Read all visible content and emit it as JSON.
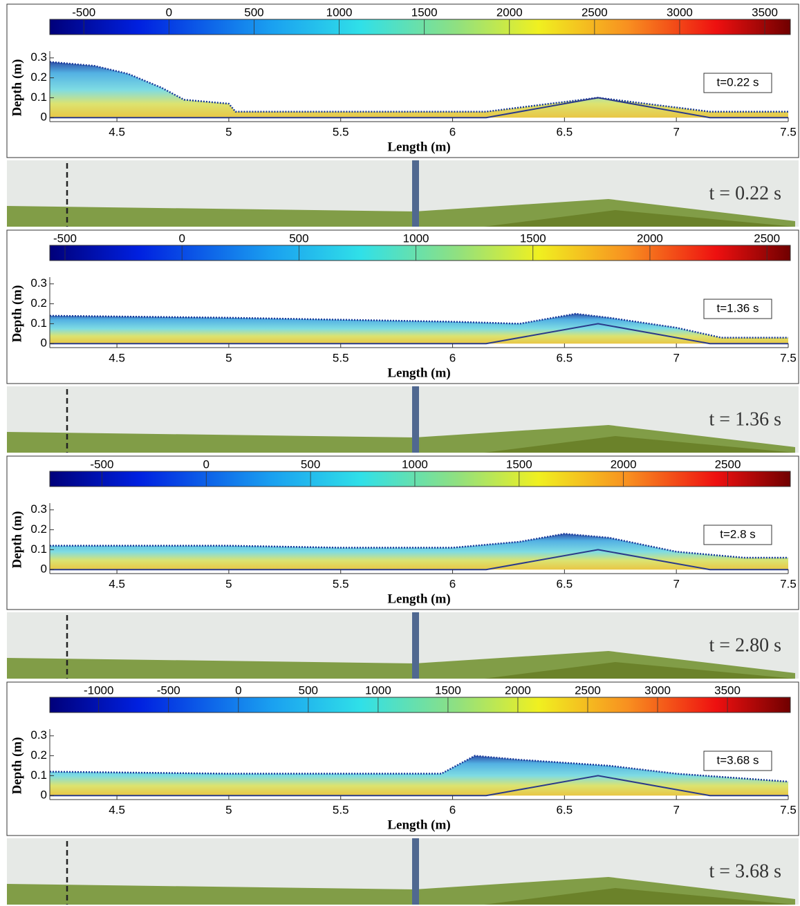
{
  "chart_data": [
    {
      "type": "area",
      "xlabel": "Length (m)",
      "ylabel": "Depth (m)",
      "annotation": "t=0.22 s",
      "photo_label": "t = 0.22 s",
      "xlim": [
        4.2,
        7.5
      ],
      "xticks": [
        4.5,
        5,
        5.5,
        6,
        6.5,
        7,
        7.5
      ],
      "ylim": [
        -0.02,
        0.32
      ],
      "yticks": [
        0,
        0.1,
        0.2,
        0.3
      ],
      "clim": [
        -700,
        3650
      ],
      "cticks": [
        -500,
        0,
        500,
        1000,
        1500,
        2000,
        2500,
        3000,
        3500
      ],
      "x": [
        4.2,
        4.4,
        4.55,
        4.7,
        4.8,
        5.0,
        5.03,
        6.15,
        6.65,
        7.15,
        7.5
      ],
      "values": [
        0.28,
        0.26,
        0.22,
        0.15,
        0.09,
        0.07,
        0.03,
        0.03,
        0.1,
        0.03,
        0.03
      ],
      "bed": {
        "x": [
          4.2,
          6.15,
          6.65,
          7.15,
          7.5
        ],
        "values": [
          0,
          0,
          0.1,
          0,
          0
        ]
      }
    },
    {
      "type": "area",
      "xlabel": "Length (m)",
      "ylabel": "Depth (m)",
      "annotation": "t=1.36 s",
      "photo_label": "t = 1.36 s",
      "xlim": [
        4.2,
        7.5
      ],
      "xticks": [
        4.5,
        5,
        5.5,
        6,
        6.5,
        7,
        7.5
      ],
      "ylim": [
        -0.02,
        0.32
      ],
      "yticks": [
        0,
        0.1,
        0.2,
        0.3
      ],
      "clim": [
        -565,
        2600
      ],
      "cticks": [
        -500,
        0,
        500,
        1000,
        1500,
        2000,
        2500
      ],
      "x": [
        4.2,
        5,
        5.5,
        6,
        6.3,
        6.55,
        6.7,
        7,
        7.2,
        7.5
      ],
      "values": [
        0.14,
        0.13,
        0.12,
        0.11,
        0.1,
        0.15,
        0.13,
        0.08,
        0.03,
        0.03
      ],
      "bed": {
        "x": [
          4.2,
          6.15,
          6.65,
          7.15,
          7.5
        ],
        "values": [
          0,
          0,
          0.1,
          0,
          0
        ]
      }
    },
    {
      "type": "area",
      "xlabel": "Length (m)",
      "ylabel": "Depth (m)",
      "annotation": "t=2.8 s",
      "photo_label": "t = 2.80 s",
      "xlim": [
        4.2,
        7.5
      ],
      "xticks": [
        4.5,
        5,
        5.5,
        6,
        6.5,
        7,
        7.5
      ],
      "ylim": [
        -0.02,
        0.32
      ],
      "yticks": [
        0,
        0.1,
        0.2,
        0.3
      ],
      "clim": [
        -750,
        2800
      ],
      "cticks": [
        -500,
        0,
        500,
        1000,
        1500,
        2000,
        2500
      ],
      "x": [
        4.2,
        5,
        5.5,
        6,
        6.3,
        6.5,
        6.7,
        7,
        7.3,
        7.5
      ],
      "values": [
        0.12,
        0.12,
        0.11,
        0.11,
        0.14,
        0.18,
        0.16,
        0.09,
        0.06,
        0.06
      ],
      "bed": {
        "x": [
          4.2,
          6.15,
          6.65,
          7.15,
          7.5
        ],
        "values": [
          0,
          0,
          0.1,
          0,
          0
        ]
      }
    },
    {
      "type": "area",
      "xlabel": "Length (m)",
      "ylabel": "Depth (m)",
      "annotation": "t=3.68 s",
      "photo_label": "t = 3.68 s",
      "xlim": [
        4.2,
        7.5
      ],
      "xticks": [
        4.5,
        5,
        5.5,
        6,
        6.5,
        7,
        7.5
      ],
      "ylim": [
        -0.02,
        0.32
      ],
      "yticks": [
        0,
        0.1,
        0.2,
        0.3
      ],
      "clim": [
        -1350,
        3950
      ],
      "cticks": [
        -1000,
        -500,
        0,
        500,
        1000,
        1500,
        2000,
        2500,
        3000,
        3500
      ],
      "x": [
        4.2,
        5,
        5.5,
        5.95,
        6.1,
        6.3,
        6.7,
        7,
        7.5
      ],
      "values": [
        0.12,
        0.11,
        0.11,
        0.11,
        0.2,
        0.18,
        0.15,
        0.11,
        0.07
      ],
      "bed": {
        "x": [
          4.2,
          6.15,
          6.65,
          7.15,
          7.5
        ],
        "values": [
          0,
          0,
          0.1,
          0,
          0
        ]
      }
    }
  ]
}
